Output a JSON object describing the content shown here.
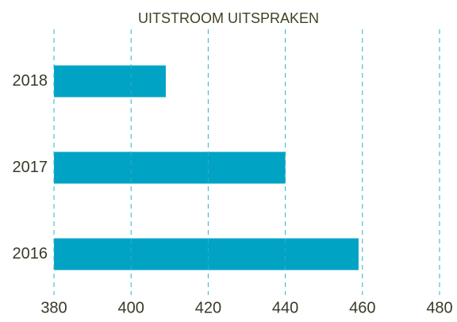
{
  "chart_data": {
    "type": "barh",
    "title": "UITSTROOM UITSPRAKEN",
    "categories": [
      "2018",
      "2017",
      "2016"
    ],
    "values": [
      409,
      440,
      459
    ],
    "color": "#00a3c4",
    "xlim": [
      380,
      480
    ],
    "xticks": [
      380,
      400,
      420,
      440,
      460,
      480
    ],
    "grid": true
  }
}
